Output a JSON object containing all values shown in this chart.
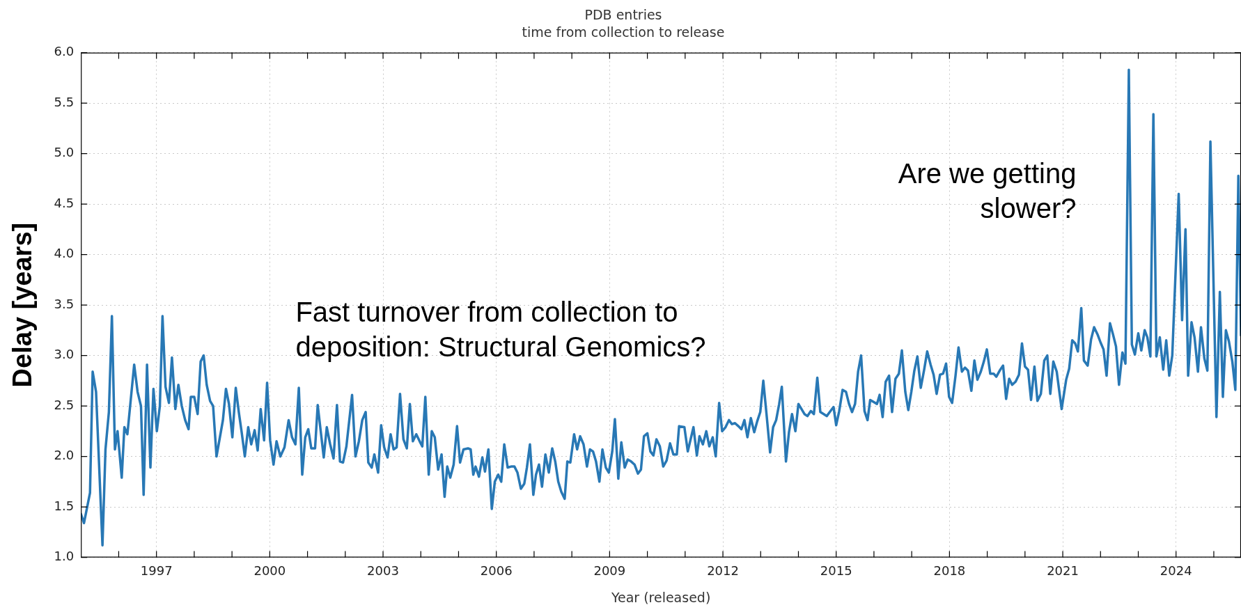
{
  "chart_data": {
    "type": "line",
    "title": "PDB entries",
    "subtitle": "time from collection to release",
    "xlabel": "Year (released)",
    "ylabel": "Delay [years]",
    "annotations": [
      "Fast turnover from collection to\ndeposition: Structural Genomics?",
      "Are we getting\nslower?"
    ],
    "xlim": [
      1995,
      2025.72
    ],
    "ylim": [
      1.0,
      6.0
    ],
    "xticks": [
      {
        "value": 1996,
        "label": null
      },
      1997,
      {
        "value": 1998,
        "label": null
      },
      {
        "value": 1999,
        "label": null
      },
      2000,
      {
        "value": 2001,
        "label": null
      },
      {
        "value": 2002,
        "label": null
      },
      2003,
      {
        "value": 2004,
        "label": null
      },
      {
        "value": 2005,
        "label": null
      },
      2006,
      {
        "value": 2007,
        "label": null
      },
      {
        "value": 2008,
        "label": null
      },
      2009,
      {
        "value": 2010,
        "label": null
      },
      {
        "value": 2011,
        "label": null
      },
      2012,
      {
        "value": 2013,
        "label": null
      },
      {
        "value": 2014,
        "label": null
      },
      2015,
      {
        "value": 2016,
        "label": null
      },
      {
        "value": 2017,
        "label": null
      },
      2018,
      {
        "value": 2019,
        "label": null
      },
      {
        "value": 2020,
        "label": null
      },
      2021,
      {
        "value": 2022,
        "label": null
      },
      {
        "value": 2023,
        "label": null
      },
      2024,
      {
        "value": 2025,
        "label": null
      }
    ],
    "yticks": [
      {
        "value": 1,
        "label": "1.0"
      },
      1.5,
      {
        "value": 2,
        "label": "2.0"
      },
      2.5,
      {
        "value": 3,
        "label": "3.0"
      },
      3.5,
      {
        "value": 4,
        "label": "4.0"
      },
      4.5,
      {
        "value": 5,
        "label": "5.0"
      },
      5.5,
      {
        "value": 6,
        "label": "6.0"
      }
    ],
    "grid": true,
    "x": [
      1995.0,
      1995.08,
      1995.24,
      1995.31,
      1995.4,
      1995.57,
      1995.65,
      1995.74,
      1995.82,
      1995.9,
      1995.97,
      1996.08,
      1996.15,
      1996.23,
      1996.41,
      1996.5,
      1996.59,
      1996.66,
      1996.75,
      1996.84,
      1996.92,
      1997.01,
      1997.09,
      1997.16,
      1997.24,
      1997.33,
      1997.41,
      1997.5,
      1997.58,
      1997.67,
      1997.76,
      1997.85,
      1997.91,
      1998.0,
      1998.09,
      1998.17,
      1998.25,
      1998.33,
      1998.42,
      1998.5,
      1998.59,
      1998.76,
      1998.84,
      1998.92,
      1999.01,
      1999.1,
      1999.18,
      1999.26,
      1999.34,
      1999.43,
      1999.51,
      1999.6,
      1999.68,
      1999.76,
      1999.85,
      1999.93,
      2000.01,
      2000.1,
      2000.18,
      2000.28,
      2000.39,
      2000.5,
      2000.59,
      2000.68,
      2000.77,
      2000.86,
      2000.94,
      2001.02,
      2001.1,
      2001.2,
      2001.27,
      2001.35,
      2001.43,
      2001.51,
      2001.6,
      2001.69,
      2001.78,
      2001.86,
      2001.94,
      2002.03,
      2002.18,
      2002.27,
      2002.36,
      2002.45,
      2002.54,
      2002.61,
      2002.7,
      2002.77,
      2002.87,
      2002.95,
      2003.03,
      2003.12,
      2003.2,
      2003.28,
      2003.36,
      2003.45,
      2003.54,
      2003.63,
      2003.71,
      2003.79,
      2003.88,
      2003.97,
      2004.04,
      2004.12,
      2004.21,
      2004.29,
      2004.37,
      2004.46,
      2004.55,
      2004.63,
      2004.7,
      2004.78,
      2004.87,
      2004.96,
      2005.04,
      2005.13,
      2005.25,
      2005.32,
      2005.39,
      2005.45,
      2005.54,
      2005.63,
      2005.7,
      2005.79,
      2005.88,
      2005.96,
      2006.05,
      2006.13,
      2006.21,
      2006.3,
      2006.39,
      2006.48,
      2006.56,
      2006.65,
      2006.74,
      2006.81,
      2006.89,
      2006.98,
      2007.05,
      2007.13,
      2007.21,
      2007.3,
      2007.39,
      2007.48,
      2007.56,
      2007.64,
      2007.72,
      2007.81,
      2007.88,
      2007.96,
      2008.06,
      2008.14,
      2008.22,
      2008.31,
      2008.4,
      2008.48,
      2008.56,
      2008.64,
      2008.73,
      2008.81,
      2008.9,
      2008.98,
      2009.07,
      2009.14,
      2009.23,
      2009.31,
      2009.4,
      2009.48,
      2009.57,
      2009.66,
      2009.75,
      2009.83,
      2009.91,
      2010.0,
      2010.08,
      2010.16,
      2010.24,
      2010.33,
      2010.42,
      2010.51,
      2010.6,
      2010.69,
      2010.78,
      2010.84,
      2010.98,
      2011.07,
      2011.22,
      2011.31,
      2011.38,
      2011.47,
      2011.56,
      2011.64,
      2011.73,
      2011.81,
      2011.9,
      2011.98,
      2012.07,
      2012.16,
      2012.24,
      2012.32,
      2012.41,
      2012.49,
      2012.57,
      2012.65,
      2012.74,
      2012.83,
      2012.91,
      2012.99,
      2013.07,
      2013.17,
      2013.25,
      2013.33,
      2013.41,
      2013.49,
      2013.56,
      2013.67,
      2013.75,
      2013.83,
      2013.92,
      2014.0,
      2014.08,
      2014.16,
      2014.24,
      2014.33,
      2014.41,
      2014.5,
      2014.58,
      2014.67,
      2014.75,
      2014.83,
      2014.93,
      2015.0,
      2015.08,
      2015.17,
      2015.26,
      2015.34,
      2015.42,
      2015.5,
      2015.58,
      2015.66,
      2015.75,
      2015.83,
      2015.9,
      2015.99,
      2016.08,
      2016.15,
      2016.23,
      2016.31,
      2016.4,
      2016.48,
      2016.57,
      2016.66,
      2016.74,
      2016.83,
      2016.91,
      2016.99,
      2017.07,
      2017.15,
      2017.24,
      2017.33,
      2017.41,
      2017.5,
      2017.58,
      2017.66,
      2017.75,
      2017.83,
      2017.91,
      2017.99,
      2018.07,
      2018.16,
      2018.24,
      2018.33,
      2018.41,
      2018.49,
      2018.58,
      2018.66,
      2018.74,
      2018.83,
      2018.91,
      2018.99,
      2019.08,
      2019.17,
      2019.24,
      2019.33,
      2019.42,
      2019.5,
      2019.58,
      2019.66,
      2019.75,
      2019.84,
      2019.92,
      2020.0,
      2020.08,
      2020.16,
      2020.25,
      2020.33,
      2020.42,
      2020.51,
      2020.59,
      2020.67,
      2020.75,
      2020.84,
      2020.97,
      2021.09,
      2021.17,
      2021.25,
      2021.33,
      2021.4,
      2021.49,
      2021.56,
      2021.66,
      2021.75,
      2021.83,
      2021.92,
      2022.0,
      2022.08,
      2022.16,
      2022.25,
      2022.33,
      2022.41,
      2022.49,
      2022.58,
      2022.66,
      2022.75,
      2022.83,
      2022.91,
      2023.0,
      2023.08,
      2023.17,
      2023.24,
      2023.32,
      2023.4,
      2023.48,
      2023.57,
      2023.66,
      2023.74,
      2023.82,
      2023.9,
      2024.07,
      2024.16,
      2024.25,
      2024.32,
      2024.41,
      2024.49,
      2024.58,
      2024.66,
      2024.75,
      2024.83,
      2024.91,
      2025.07,
      2025.16,
      2025.24,
      2025.32,
      2025.4,
      2025.49,
      2025.57,
      2025.65,
      2025.72
    ],
    "series": [
      {
        "color": "#2878b5",
        "values": [
          1.43,
          1.34,
          1.64,
          2.84,
          2.64,
          1.12,
          2.07,
          2.44,
          3.39,
          2.07,
          2.25,
          1.79,
          2.29,
          2.22,
          2.91,
          2.64,
          2.5,
          1.62,
          2.91,
          1.89,
          2.67,
          2.25,
          2.5,
          3.39,
          2.69,
          2.53,
          2.98,
          2.47,
          2.71,
          2.5,
          2.36,
          2.27,
          2.59,
          2.59,
          2.42,
          2.94,
          3.0,
          2.71,
          2.55,
          2.5,
          2.0,
          2.36,
          2.67,
          2.52,
          2.19,
          2.68,
          2.44,
          2.23,
          2.0,
          2.29,
          2.12,
          2.26,
          2.06,
          2.47,
          2.16,
          2.73,
          2.16,
          1.92,
          2.15,
          2.0,
          2.09,
          2.36,
          2.19,
          2.12,
          2.68,
          1.82,
          2.19,
          2.27,
          2.08,
          2.08,
          2.51,
          2.25,
          1.99,
          2.29,
          2.12,
          1.98,
          2.51,
          1.95,
          1.94,
          2.1,
          2.61,
          2.0,
          2.15,
          2.36,
          2.44,
          1.94,
          1.89,
          2.02,
          1.84,
          2.31,
          2.09,
          1.99,
          2.22,
          2.07,
          2.09,
          2.62,
          2.17,
          2.08,
          2.52,
          2.15,
          2.22,
          2.15,
          2.1,
          2.59,
          1.82,
          2.25,
          2.19,
          1.87,
          2.02,
          1.6,
          1.9,
          1.79,
          1.92,
          2.3,
          1.94,
          2.07,
          2.08,
          2.07,
          1.82,
          1.9,
          1.8,
          1.99,
          1.85,
          2.07,
          1.48,
          1.75,
          1.82,
          1.75,
          2.12,
          1.89,
          1.9,
          1.9,
          1.84,
          1.68,
          1.73,
          1.89,
          2.12,
          1.62,
          1.82,
          1.92,
          1.7,
          2.02,
          1.84,
          2.08,
          1.95,
          1.75,
          1.65,
          1.58,
          1.95,
          1.94,
          2.22,
          2.07,
          2.2,
          2.12,
          1.9,
          2.07,
          2.05,
          1.95,
          1.75,
          2.07,
          1.89,
          1.84,
          2.05,
          2.37,
          1.78,
          2.14,
          1.89,
          1.97,
          1.95,
          1.92,
          1.83,
          1.87,
          2.2,
          2.23,
          2.05,
          2.01,
          2.17,
          2.1,
          1.9,
          1.96,
          2.13,
          2.02,
          2.02,
          2.3,
          2.29,
          2.05,
          2.29,
          2.01,
          2.2,
          2.12,
          2.25,
          2.1,
          2.19,
          2.0,
          2.53,
          2.25,
          2.29,
          2.36,
          2.32,
          2.33,
          2.3,
          2.27,
          2.36,
          2.19,
          2.38,
          2.24,
          2.35,
          2.44,
          2.75,
          2.36,
          2.04,
          2.29,
          2.36,
          2.52,
          2.69,
          1.95,
          2.24,
          2.42,
          2.25,
          2.52,
          2.47,
          2.42,
          2.4,
          2.45,
          2.42,
          2.78,
          2.44,
          2.42,
          2.4,
          2.44,
          2.49,
          2.31,
          2.45,
          2.66,
          2.64,
          2.52,
          2.44,
          2.52,
          2.84,
          3.0,
          2.45,
          2.36,
          2.56,
          2.54,
          2.52,
          2.61,
          2.39,
          2.74,
          2.8,
          2.44,
          2.77,
          2.82,
          3.05,
          2.64,
          2.46,
          2.64,
          2.85,
          2.99,
          2.68,
          2.86,
          3.04,
          2.91,
          2.81,
          2.62,
          2.81,
          2.82,
          2.92,
          2.59,
          2.53,
          2.8,
          3.08,
          2.84,
          2.88,
          2.85,
          2.65,
          2.95,
          2.76,
          2.84,
          2.94,
          3.06,
          2.82,
          2.82,
          2.79,
          2.85,
          2.9,
          2.57,
          2.77,
          2.71,
          2.74,
          2.81,
          3.12,
          2.89,
          2.86,
          2.56,
          2.89,
          2.55,
          2.62,
          2.95,
          3.0,
          2.62,
          2.94,
          2.84,
          2.47,
          2.76,
          2.87,
          3.15,
          3.12,
          3.04,
          3.47,
          2.95,
          2.9,
          3.16,
          3.28,
          3.21,
          3.13,
          3.06,
          2.8,
          3.32,
          3.21,
          3.09,
          2.71,
          3.03,
          2.92,
          5.83,
          3.11,
          3.01,
          3.22,
          3.05,
          3.25,
          3.18,
          2.99,
          5.39,
          2.99,
          3.18,
          2.86,
          3.15,
          2.8,
          3.0,
          4.6,
          3.35,
          4.25,
          2.8,
          3.33,
          3.18,
          2.84,
          3.28,
          2.97,
          2.85,
          5.12,
          2.39,
          3.63,
          2.59,
          3.25,
          3.14,
          2.94,
          2.66,
          4.78,
          3.2
        ]
      }
    ]
  }
}
